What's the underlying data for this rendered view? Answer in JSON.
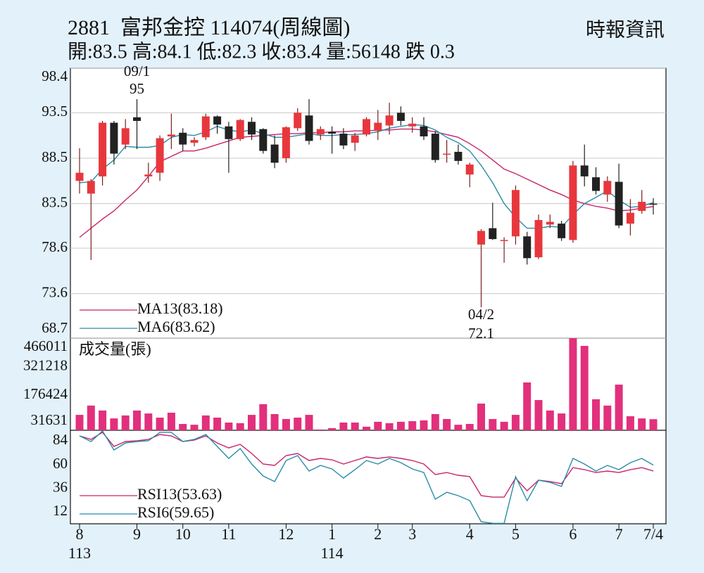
{
  "header": {
    "code_name": "2881  富邦金控 114074(周線圖)",
    "source": "時報資訊",
    "quote": "開:83.5 高:84.1 低:82.3 收:83.4 量:56148 跌 0.3"
  },
  "chart_data": [
    {
      "type": "candlestick",
      "categories": [
        "8",
        null,
        null,
        null,
        null,
        "9",
        null,
        null,
        null,
        "10",
        null,
        null,
        null,
        "11",
        null,
        null,
        null,
        null,
        "12",
        null,
        null,
        null,
        "1",
        null,
        null,
        null,
        "2",
        null,
        null,
        "3",
        null,
        null,
        null,
        null,
        "4",
        null,
        null,
        null,
        "5",
        null,
        null,
        null,
        null,
        "6",
        null,
        null,
        null,
        "7",
        null,
        null,
        "7/4"
      ],
      "year_labels": [
        {
          "category": 0,
          "label": "113"
        },
        {
          "category": 22,
          "label": "114"
        }
      ],
      "open": [
        86.0,
        84.6,
        86.5,
        92.4,
        90.0,
        93.0,
        86.5,
        86.9,
        90.9,
        91.3,
        90.2,
        90.8,
        93.1,
        92.0,
        90.6,
        92.5,
        91.7,
        90.0,
        88.5,
        91.8,
        93.2,
        91.1,
        91.4,
        91.2,
        90.2,
        91.1,
        91.5,
        92.1,
        93.5,
        92.0,
        92.0,
        91.2,
        88.9,
        89.2,
        86.7,
        79.0,
        80.8,
        79.5,
        79.9,
        79.9,
        77.6,
        81.2,
        81.3,
        79.5,
        87.7,
        86.4,
        84.5,
        85.9,
        81.3,
        82.7,
        83.5
      ],
      "high": [
        89.6,
        86.2,
        92.6,
        92.6,
        92.8,
        95.0,
        88.0,
        91.0,
        93.4,
        91.8,
        90.8,
        93.4,
        93.2,
        92.5,
        92.8,
        93.0,
        91.8,
        91.0,
        92.0,
        94.0,
        95.0,
        92.0,
        92.0,
        91.8,
        91.3,
        93.0,
        93.8,
        94.6,
        94.2,
        93.0,
        93.0,
        91.5,
        90.5,
        90.0,
        88.0,
        80.7,
        83.6,
        79.8,
        85.5,
        80.4,
        82.3,
        82.3,
        81.6,
        88.2,
        90.0,
        87.5,
        86.5,
        87.9,
        84.0,
        85.0,
        84.1
      ],
      "low": [
        84.6,
        77.3,
        85.5,
        87.8,
        89.5,
        89.5,
        85.8,
        86.0,
        89.5,
        89.3,
        89.8,
        90.5,
        91.2,
        86.9,
        90.4,
        90.5,
        89.0,
        87.4,
        88.0,
        91.5,
        90.0,
        90.5,
        89.0,
        89.5,
        89.3,
        90.9,
        90.5,
        91.1,
        92.1,
        91.3,
        90.5,
        88.0,
        88.0,
        87.8,
        85.3,
        72.1,
        79.5,
        77.0,
        79.0,
        76.8,
        77.4,
        80.8,
        79.4,
        79.2,
        85.4,
        84.5,
        83.7,
        80.8,
        80.0,
        82.4,
        82.3
      ],
      "close": [
        86.9,
        86.0,
        92.4,
        89.0,
        91.8,
        92.6,
        86.7,
        90.7,
        91.1,
        90.0,
        90.5,
        93.1,
        92.2,
        90.6,
        92.7,
        91.1,
        89.3,
        88.0,
        91.9,
        93.5,
        90.4,
        91.7,
        91.2,
        89.9,
        91.0,
        92.8,
        92.4,
        93.2,
        92.6,
        92.3,
        90.9,
        88.3,
        89.0,
        88.2,
        87.8,
        80.5,
        79.6,
        79.5,
        85.0,
        77.5,
        81.7,
        81.5,
        79.7,
        87.7,
        86.5,
        84.9,
        86.0,
        81.1,
        82.5,
        83.7,
        83.4
      ],
      "up_color": "#e8373c",
      "down_color": "#222222",
      "series": [
        {
          "name": "MA13(83.18)",
          "color": "#c8246a",
          "values": [
            79.8,
            80.8,
            81.8,
            82.7,
            83.9,
            85.0,
            86.5,
            88.1,
            88.7,
            89.3,
            89.3,
            89.6,
            90.0,
            90.4,
            90.8,
            90.9,
            91.0,
            91.1,
            91.2,
            91.2,
            91.3,
            91.3,
            91.4,
            91.4,
            91.5,
            91.5,
            91.6,
            91.6,
            91.7,
            91.7,
            91.6,
            91.4,
            91.1,
            90.8,
            90.1,
            89.3,
            88.3,
            87.3,
            86.8,
            86.2,
            85.6,
            85.0,
            84.5,
            83.9,
            83.5,
            83.2,
            83.0,
            82.7,
            82.8,
            83.0,
            83.18
          ]
        },
        {
          "name": "MA6(83.62)",
          "color": "#2a8ca8",
          "values": [
            85.8,
            85.9,
            87.3,
            88.3,
            89.8,
            89.7,
            89.7,
            89.9,
            90.8,
            91.1,
            91.0,
            91.4,
            92.0,
            91.6,
            91.4,
            91.6,
            91.2,
            90.8,
            90.8,
            91.0,
            91.2,
            91.0,
            91.0,
            91.1,
            91.1,
            91.2,
            91.4,
            91.8,
            92.0,
            92.2,
            92.1,
            91.6,
            90.8,
            90.2,
            89.3,
            87.7,
            85.8,
            83.5,
            82.0,
            80.8,
            80.8,
            81.0,
            80.9,
            82.3,
            83.5,
            84.2,
            84.9,
            83.9,
            83.1,
            83.2,
            83.62
          ]
        }
      ],
      "annotations": [
        {
          "category": 5,
          "date": "09/1",
          "value": 95,
          "at": "high"
        },
        {
          "category": 35,
          "date": "04/2",
          "value": 72.1,
          "at": "low"
        }
      ],
      "ylim": [
        68.7,
        98.4
      ],
      "yticks": [
        98.4,
        93.5,
        88.5,
        83.5,
        78.6,
        73.6,
        68.7
      ],
      "grid": true,
      "legend": "lower-left"
    },
    {
      "type": "bar",
      "title": "成交量(張)",
      "color": "#e2307c",
      "values": [
        78000,
        125000,
        100000,
        60000,
        75000,
        100000,
        85000,
        64000,
        89000,
        32000,
        28000,
        75000,
        64000,
        39000,
        36000,
        78000,
        132000,
        82000,
        57000,
        64000,
        78000,
        4000,
        11000,
        39000,
        39000,
        18000,
        43000,
        36000,
        43000,
        46000,
        50000,
        82000,
        57000,
        28000,
        32000,
        135000,
        57000,
        43000,
        78000,
        242000,
        153000,
        100000,
        85000,
        466011,
        427000,
        157000,
        125000,
        231000,
        71000,
        60000,
        56148
      ],
      "ylim": [
        0,
        466011
      ],
      "yticks": [
        466011,
        321218,
        176424,
        31631
      ],
      "grid": false
    },
    {
      "type": "line",
      "series": [
        {
          "name": "RSI13(53.63)",
          "color": "#c8246a",
          "values": [
            89.3,
            85.7,
            92.9,
            78.6,
            83.6,
            84.3,
            85.7,
            90.7,
            89.3,
            83.6,
            85.0,
            89.3,
            82.1,
            77.1,
            80.7,
            71.4,
            60.7,
            59.3,
            69.3,
            71.4,
            64.3,
            66.4,
            65.0,
            60.7,
            64.3,
            67.9,
            66.4,
            67.9,
            66.4,
            64.3,
            60.7,
            50.0,
            52.1,
            49.3,
            47.9,
            28.6,
            27.1,
            27.1,
            46.4,
            33.6,
            44.3,
            42.9,
            40.7,
            57.1,
            55.0,
            52.1,
            53.6,
            52.1,
            55.0,
            57.1,
            53.63
          ]
        },
        {
          "name": "RSI6(59.65)",
          "color": "#2a8ca8",
          "values": [
            89.3,
            83.6,
            94.3,
            75.0,
            82.1,
            83.6,
            84.3,
            92.9,
            92.9,
            83.6,
            85.7,
            90.7,
            78.6,
            66.4,
            76.4,
            60.7,
            48.6,
            42.9,
            64.3,
            69.3,
            53.6,
            59.3,
            55.7,
            46.4,
            55.0,
            64.3,
            60.7,
            66.4,
            62.1,
            55.7,
            52.1,
            25.0,
            32.1,
            28.6,
            23.6,
            2.1,
            0.5,
            0.5,
            47.9,
            23.6,
            44.3,
            42.1,
            37.9,
            66.4,
            60.7,
            53.6,
            59.3,
            55.0,
            62.1,
            66.4,
            59.65
          ]
        }
      ],
      "ylim": [
        0,
        95
      ],
      "yticks": [
        84,
        60,
        36,
        12
      ],
      "grid": false,
      "legend": "lower-left"
    }
  ]
}
